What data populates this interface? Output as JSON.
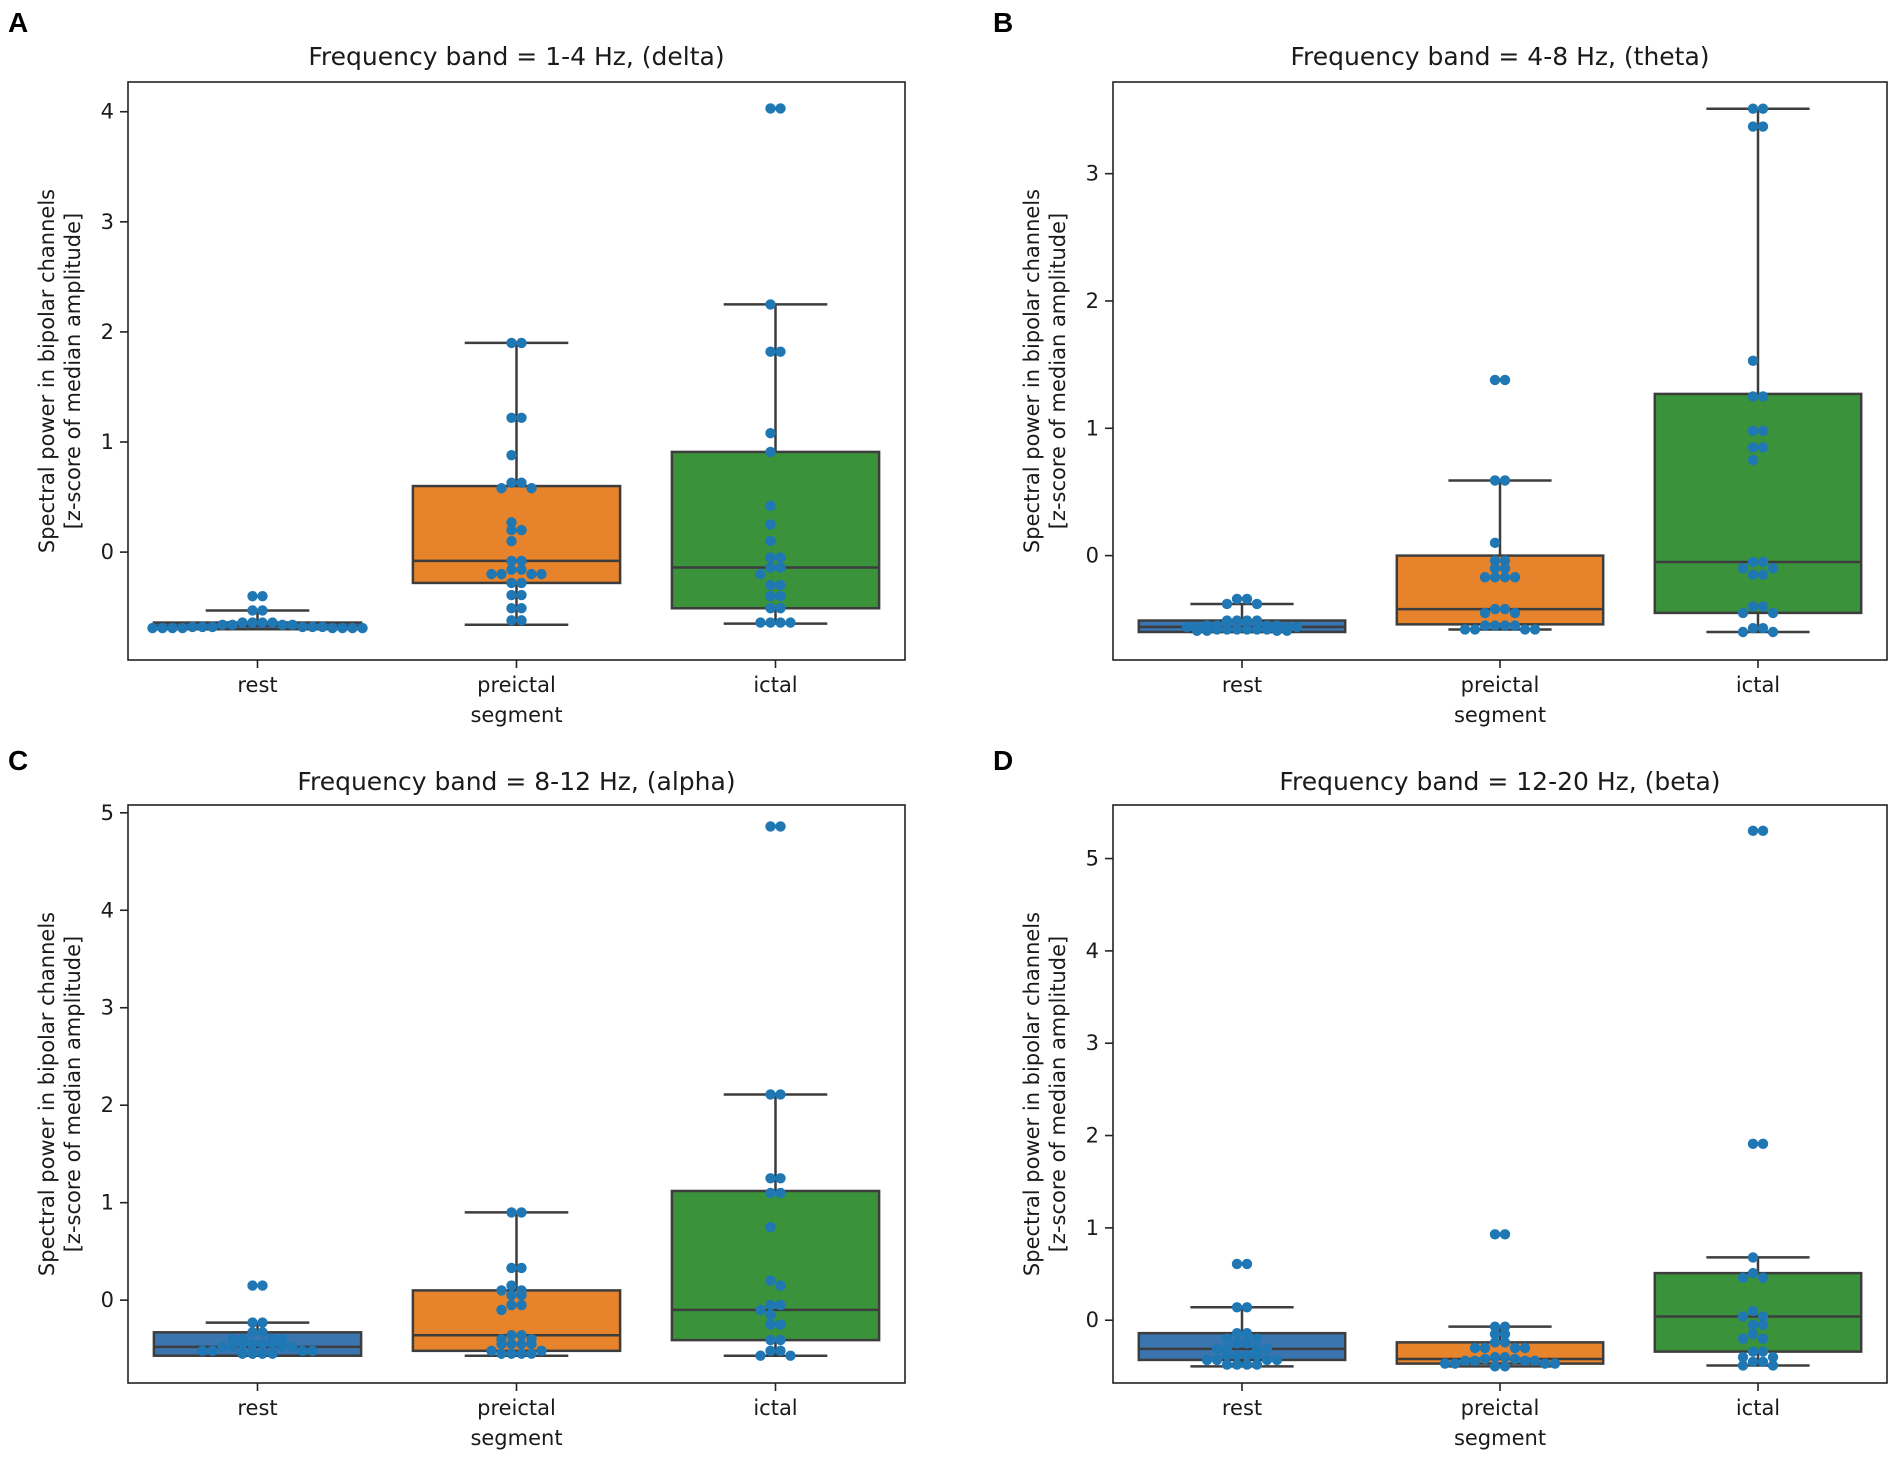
{
  "chart_data": [
    {
      "panel": "A",
      "type": "box",
      "title": "Frequency band = 1-4 Hz, (delta)",
      "xlabel": "segment",
      "ylabel": [
        "Spectral power in bipolar channels",
        "[z-score of median amplitude]"
      ],
      "categories": [
        "rest",
        "preictal",
        "ictal"
      ],
      "yticks": [
        0,
        1,
        2,
        3,
        4
      ],
      "ylim": [
        -0.98,
        4.27
      ],
      "colors": [
        "#3a75b0",
        "#e6832b",
        "#3a923a"
      ],
      "boxes": [
        {
          "whislo": -0.7,
          "q1": -0.7,
          "med": -0.67,
          "q3": -0.64,
          "whishi": -0.53
        },
        {
          "whislo": -0.66,
          "q1": -0.28,
          "med": -0.08,
          "q3": 0.6,
          "whishi": 1.9
        },
        {
          "whislo": -0.65,
          "q1": -0.51,
          "med": -0.14,
          "q3": 0.91,
          "whishi": 2.25
        }
      ],
      "points": [
        [
          -0.4,
          -0.4,
          -0.53,
          -0.53,
          -0.64,
          -0.64,
          -0.64,
          -0.64,
          -0.66,
          -0.66,
          -0.66,
          -0.66,
          -0.68,
          -0.68,
          -0.68,
          -0.68,
          -0.68,
          -0.68,
          -0.69,
          -0.69,
          -0.69,
          -0.69,
          -0.69,
          -0.69,
          -0.69,
          -0.69
        ],
        [
          1.9,
          1.9,
          1.22,
          1.22,
          0.88,
          0.63,
          0.63,
          0.58,
          0.58,
          0.27,
          0.2,
          0.2,
          0.1,
          -0.08,
          -0.08,
          -0.16,
          -0.16,
          -0.2,
          -0.2,
          -0.2,
          -0.2,
          -0.28,
          -0.28,
          -0.39,
          -0.39,
          -0.51,
          -0.51,
          -0.62,
          -0.62
        ],
        [
          4.03,
          4.03,
          2.25,
          1.82,
          1.82,
          1.08,
          0.91,
          0.42,
          0.25,
          0.1,
          -0.05,
          -0.05,
          -0.14,
          -0.14,
          -0.2,
          -0.3,
          -0.3,
          -0.4,
          -0.4,
          -0.51,
          -0.51,
          -0.64,
          -0.64,
          -0.64,
          -0.64
        ]
      ]
    },
    {
      "panel": "B",
      "type": "box",
      "title": "Frequency band = 4-8 Hz, (theta)",
      "xlabel": "segment",
      "ylabel": [
        "Spectral power in bipolar channels",
        "[z-score of median amplitude]"
      ],
      "categories": [
        "rest",
        "preictal",
        "ictal"
      ],
      "yticks": [
        0,
        1,
        2,
        3
      ],
      "ylim": [
        -0.82,
        3.72
      ],
      "colors": [
        "#3a75b0",
        "#e6832b",
        "#3a923a"
      ],
      "boxes": [
        {
          "whislo": -0.6,
          "q1": -0.6,
          "med": -0.56,
          "q3": -0.51,
          "whishi": -0.38
        },
        {
          "whislo": -0.58,
          "q1": -0.54,
          "med": -0.42,
          "q3": 0.0,
          "whishi": 0.59
        },
        {
          "whislo": -0.6,
          "q1": -0.45,
          "med": -0.05,
          "q3": 1.27,
          "whishi": 3.51
        }
      ],
      "points": [
        [
          -0.34,
          -0.34,
          -0.38,
          -0.38,
          -0.51,
          -0.51,
          -0.51,
          -0.51,
          -0.55,
          -0.55,
          -0.55,
          -0.55,
          -0.56,
          -0.56,
          -0.56,
          -0.56,
          -0.58,
          -0.58,
          -0.58,
          -0.58,
          -0.58,
          -0.58,
          -0.59,
          -0.59,
          -0.59,
          -0.59
        ],
        [
          1.38,
          1.38,
          0.59,
          0.59,
          0.1,
          -0.04,
          -0.04,
          -0.1,
          -0.1,
          -0.17,
          -0.17,
          -0.17,
          -0.17,
          -0.42,
          -0.42,
          -0.45,
          -0.45,
          -0.55,
          -0.55,
          -0.55,
          -0.55,
          -0.58,
          -0.58,
          -0.58,
          -0.58
        ],
        [
          3.51,
          3.51,
          3.37,
          3.37,
          1.53,
          1.25,
          1.25,
          0.98,
          0.98,
          0.85,
          0.85,
          0.75,
          -0.05,
          -0.05,
          -0.1,
          -0.1,
          -0.15,
          -0.15,
          -0.4,
          -0.4,
          -0.45,
          -0.45,
          -0.57,
          -0.57,
          -0.6,
          -0.6
        ]
      ]
    },
    {
      "panel": "C",
      "type": "box",
      "title": "Frequency band = 8-12 Hz, (alpha)",
      "xlabel": "segment",
      "ylabel": [
        "Spectral power in bipolar channels",
        "[z-score of median amplitude]"
      ],
      "categories": [
        "rest",
        "preictal",
        "ictal"
      ],
      "yticks": [
        0,
        1,
        2,
        3,
        4,
        5
      ],
      "ylim": [
        -0.85,
        5.08
      ],
      "colors": [
        "#3a75b0",
        "#e6832b",
        "#3a923a"
      ],
      "boxes": [
        {
          "whislo": -0.57,
          "q1": -0.57,
          "med": -0.48,
          "q3": -0.33,
          "whishi": -0.23
        },
        {
          "whislo": -0.57,
          "q1": -0.52,
          "med": -0.36,
          "q3": 0.1,
          "whishi": 0.9
        },
        {
          "whislo": -0.57,
          "q1": -0.41,
          "med": -0.1,
          "q3": 1.12,
          "whishi": 2.11
        }
      ],
      "points": [
        [
          0.15,
          0.15,
          -0.23,
          -0.23,
          -0.33,
          -0.33,
          -0.4,
          -0.4,
          -0.4,
          -0.4,
          -0.45,
          -0.45,
          -0.45,
          -0.45,
          -0.48,
          -0.48,
          -0.48,
          -0.48,
          -0.52,
          -0.52,
          -0.52,
          -0.52,
          -0.55,
          -0.55,
          -0.55,
          -0.55
        ],
        [
          0.9,
          0.9,
          0.33,
          0.33,
          0.15,
          0.1,
          0.1,
          0.05,
          0.05,
          -0.05,
          -0.05,
          -0.1,
          -0.36,
          -0.36,
          -0.4,
          -0.4,
          -0.45,
          -0.45,
          -0.45,
          -0.45,
          -0.52,
          -0.52,
          -0.55,
          -0.55,
          -0.55,
          -0.55
        ],
        [
          4.86,
          4.86,
          2.11,
          2.11,
          1.25,
          1.25,
          1.1,
          1.1,
          0.75,
          0.2,
          0.15,
          -0.05,
          -0.05,
          -0.1,
          -0.15,
          -0.25,
          -0.25,
          -0.41,
          -0.41,
          -0.52,
          -0.52,
          -0.57,
          -0.57
        ]
      ]
    },
    {
      "panel": "D",
      "type": "box",
      "title": "Frequency band = 12-20 Hz, (beta)",
      "xlabel": "segment",
      "ylabel": [
        "Spectral power in bipolar channels",
        "[z-score of median amplitude]"
      ],
      "categories": [
        "rest",
        "preictal",
        "ictal"
      ],
      "yticks": [
        0,
        1,
        2,
        3,
        4,
        5
      ],
      "ylim": [
        -0.68,
        5.58
      ],
      "colors": [
        "#3a75b0",
        "#e6832b",
        "#3a923a"
      ],
      "boxes": [
        {
          "whislo": -0.5,
          "q1": -0.43,
          "med": -0.31,
          "q3": -0.14,
          "whishi": 0.14
        },
        {
          "whislo": -0.5,
          "q1": -0.47,
          "med": -0.42,
          "q3": -0.24,
          "whishi": -0.07
        },
        {
          "whislo": -0.49,
          "q1": -0.34,
          "med": 0.04,
          "q3": 0.51,
          "whishi": 0.68
        }
      ],
      "points": [
        [
          0.61,
          0.61,
          0.14,
          0.14,
          -0.14,
          -0.14,
          -0.2,
          -0.2,
          -0.25,
          -0.25,
          -0.31,
          -0.31,
          -0.31,
          -0.31,
          -0.38,
          -0.38,
          -0.38,
          -0.38,
          -0.43,
          -0.43,
          -0.43,
          -0.43,
          -0.48,
          -0.48,
          -0.48,
          -0.48
        ],
        [
          0.93,
          0.93,
          -0.07,
          -0.07,
          -0.15,
          -0.15,
          -0.24,
          -0.24,
          -0.3,
          -0.3,
          -0.3,
          -0.3,
          -0.4,
          -0.4,
          -0.42,
          -0.42,
          -0.44,
          -0.44,
          -0.44,
          -0.44,
          -0.47,
          -0.47,
          -0.47,
          -0.47,
          -0.5,
          -0.5
        ],
        [
          5.3,
          5.3,
          1.91,
          1.91,
          0.68,
          0.51,
          0.46,
          0.46,
          0.1,
          0.04,
          0.04,
          -0.05,
          -0.05,
          -0.15,
          -0.2,
          -0.2,
          -0.34,
          -0.34,
          -0.4,
          -0.4,
          -0.45,
          -0.45,
          -0.49,
          -0.49
        ]
      ]
    }
  ]
}
